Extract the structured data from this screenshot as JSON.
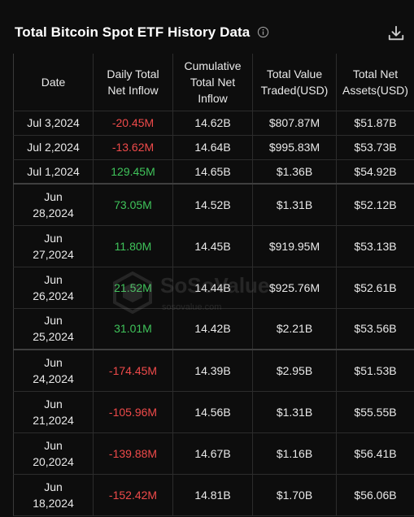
{
  "header": {
    "title": "Total Bitcoin Spot ETF History Data",
    "info_icon": "info-circle-icon",
    "download_icon": "download-icon"
  },
  "table": {
    "columns": [
      "Date",
      "Daily Total Net Inflow",
      "Cumulative Total Net Inflow",
      "Total Value Traded(USD)",
      "Total Net Assets(USD)"
    ],
    "rows": [
      {
        "date": "Jul 3,2024",
        "inflow": "-20.45M",
        "trend": "neg",
        "cumulative": "14.62B",
        "traded": "$807.87M",
        "assets": "$51.87B"
      },
      {
        "date": "Jul 2,2024",
        "inflow": "-13.62M",
        "trend": "neg",
        "cumulative": "14.64B",
        "traded": "$995.83M",
        "assets": "$53.73B"
      },
      {
        "date": "Jul 1,2024",
        "inflow": "129.45M",
        "trend": "pos",
        "cumulative": "14.65B",
        "traded": "$1.36B",
        "assets": "$54.92B"
      },
      {
        "date": "Jun 28,2024",
        "inflow": "73.05M",
        "trend": "pos",
        "cumulative": "14.52B",
        "traded": "$1.31B",
        "assets": "$52.12B"
      },
      {
        "date": "Jun 27,2024",
        "inflow": "11.80M",
        "trend": "pos",
        "cumulative": "14.45B",
        "traded": "$919.95M",
        "assets": "$53.13B"
      },
      {
        "date": "Jun 26,2024",
        "inflow": "21.52M",
        "trend": "pos",
        "cumulative": "14.44B",
        "traded": "$925.76M",
        "assets": "$52.61B"
      },
      {
        "date": "Jun 25,2024",
        "inflow": "31.01M",
        "trend": "pos",
        "cumulative": "14.42B",
        "traded": "$2.21B",
        "assets": "$53.56B"
      },
      {
        "date": "Jun 24,2024",
        "inflow": "-174.45M",
        "trend": "neg",
        "cumulative": "14.39B",
        "traded": "$2.95B",
        "assets": "$51.53B"
      },
      {
        "date": "Jun 21,2024",
        "inflow": "-105.96M",
        "trend": "neg",
        "cumulative": "14.56B",
        "traded": "$1.31B",
        "assets": "$55.55B"
      },
      {
        "date": "Jun 20,2024",
        "inflow": "-139.88M",
        "trend": "neg",
        "cumulative": "14.67B",
        "traded": "$1.16B",
        "assets": "$56.41B"
      },
      {
        "date": "Jun 18,2024",
        "inflow": "-152.42M",
        "trend": "neg",
        "cumulative": "14.81B",
        "traded": "$1.70B",
        "assets": "$56.06B"
      }
    ]
  },
  "watermark": {
    "brand": "SoSoValue",
    "url": "sosovalue.com"
  },
  "colors": {
    "negative": "#ef4a4a",
    "positive": "#3fc35a",
    "background": "#0d0d0d"
  }
}
